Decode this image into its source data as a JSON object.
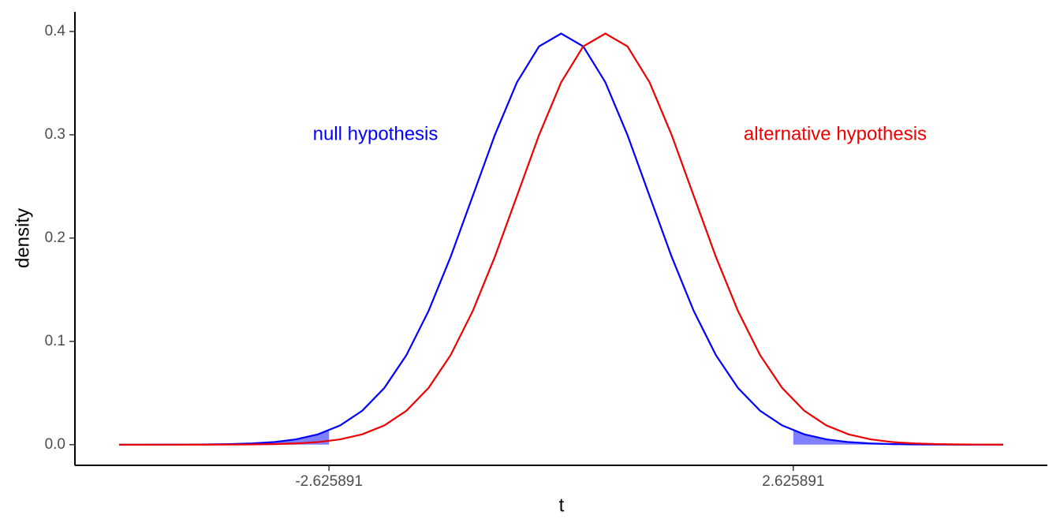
{
  "chart_data": {
    "type": "line",
    "xlabel": "t",
    "ylabel": "density",
    "x": [
      -5,
      -4.75,
      -4.5,
      -4.25,
      -4,
      -3.75,
      -3.5,
      -3.25,
      -3,
      -2.75,
      -2.5,
      -2.25,
      -2,
      -1.75,
      -1.5,
      -1.25,
      -1,
      -0.75,
      -0.5,
      -0.25,
      0,
      0.25,
      0.5,
      0.75,
      1,
      1.25,
      1.5,
      1.75,
      2,
      2.25,
      2.5,
      2.75,
      3,
      3.25,
      3.5,
      3.75,
      4,
      4.25,
      4.5,
      4.75,
      5
    ],
    "series": [
      {
        "name": "null hypothesis",
        "color": "#0000ff",
        "values": [
          1e-05,
          1e-05,
          4e-05,
          9e-05,
          0.00022,
          0.00052,
          0.00116,
          0.0025,
          0.00513,
          0.01003,
          0.01863,
          0.03286,
          0.05491,
          0.08674,
          0.12937,
          0.18189,
          0.24076,
          0.29978,
          0.3508,
          0.38559,
          0.39795,
          0.38559,
          0.3508,
          0.29978,
          0.24076,
          0.18189,
          0.12937,
          0.08674,
          0.05491,
          0.03286,
          0.01863,
          0.01003,
          0.00513,
          0.0025,
          0.00116,
          0.00052,
          0.00022,
          9e-05,
          4e-05,
          1e-05,
          1e-05
        ]
      },
      {
        "name": "alternative hypothesis",
        "color": "#ee0000",
        "values": [
          0,
          0,
          1e-05,
          1e-05,
          4e-05,
          9e-05,
          0.00022,
          0.00052,
          0.00116,
          0.0025,
          0.00513,
          0.01003,
          0.01863,
          0.03286,
          0.05491,
          0.08674,
          0.12937,
          0.18189,
          0.24076,
          0.29978,
          0.3508,
          0.38559,
          0.39795,
          0.38559,
          0.3508,
          0.29978,
          0.24076,
          0.18189,
          0.12937,
          0.08674,
          0.05491,
          0.03286,
          0.01863,
          0.01003,
          0.00513,
          0.0025,
          0.00116,
          0.00052,
          0.00022,
          9e-05,
          4e-05
        ]
      }
    ],
    "shade_color": "#8080ff",
    "xlim": [
      -5.5,
      5.5
    ],
    "xticks": [
      -2.625891,
      2.625891
    ],
    "ylim": [
      -0.02,
      0.419
    ],
    "yticks": [
      {
        "value": 0,
        "label": "0.0"
      },
      0.1,
      0.2,
      0.3,
      0.4
    ],
    "grid": false
  }
}
